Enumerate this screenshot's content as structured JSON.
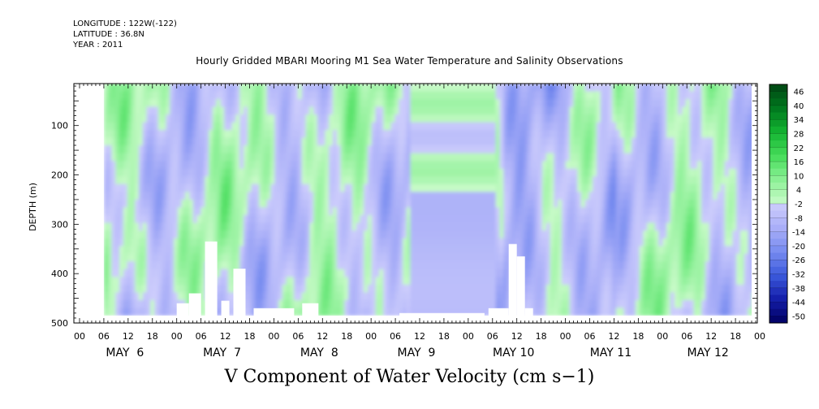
{
  "header": {
    "longitude": "LONGITUDE : 122W(-122)",
    "latitude": "LATITUDE : 36.8N",
    "year": "YEAR : 2011",
    "title": "Hourly Gridded MBARI Mooring M1 Sea Water Temperature and Salinity Observations"
  },
  "chart_data": {
    "type": "heatmap",
    "title": "Hourly Gridded MBARI Mooring M1 Sea Water Temperature and Salinity Observations",
    "subtitle": "V Component of Water Velocity (cm s−1)",
    "ylabel": "DEPTH (m)",
    "xlabel": "",
    "y_ticks": [
      "100",
      "200",
      "300",
      "400",
      "500"
    ],
    "y_tick_values": [
      100,
      200,
      300,
      400,
      500
    ],
    "ylim": [
      500,
      15
    ],
    "x_hour_ticks": [
      "00",
      "06",
      "12",
      "18",
      "00",
      "06",
      "12",
      "18",
      "00",
      "06",
      "12",
      "18",
      "00",
      "06",
      "12",
      "18",
      "00",
      "06",
      "12",
      "18",
      "00",
      "06",
      "12",
      "18",
      "00",
      "06",
      "12",
      "18",
      "00"
    ],
    "day_labels": [
      "MAY  6",
      "MAY  7",
      "MAY  8",
      "MAY  9",
      "MAY 10",
      "MAY 11",
      "MAY 12"
    ],
    "colorbar_labels": [
      "46",
      "40",
      "34",
      "28",
      "22",
      "16",
      "10",
      "4",
      "-2",
      "-8",
      "-14",
      "-20",
      "-26",
      "-32",
      "-38",
      "-44",
      "-50"
    ],
    "colorbar_range": [
      -50,
      52
    ],
    "colorbar_step": 6,
    "grid": false,
    "legend": "right"
  }
}
